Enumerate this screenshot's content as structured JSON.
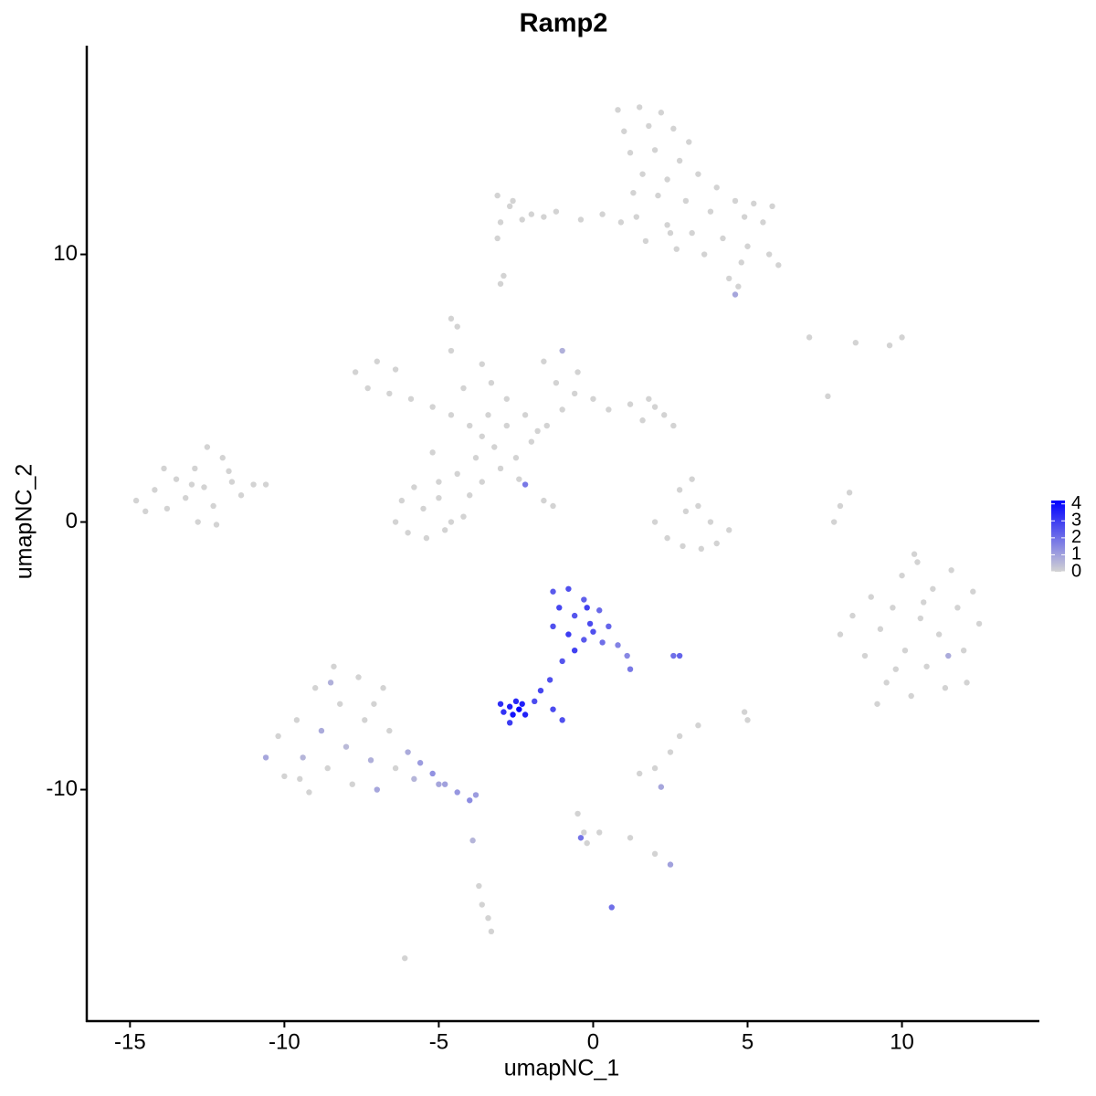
{
  "chart_data": {
    "type": "scatter",
    "title": "Ramp2",
    "x_label": "umapNC_1",
    "y_label": "umapNC_2",
    "xlim": [
      -16.4,
      14.45
    ],
    "ylim": [
      -18.65,
      17.8
    ],
    "xticks": [
      -15,
      -10,
      -5,
      0,
      5,
      10
    ],
    "yticks": [
      -10,
      0,
      10
    ],
    "color_low": "#d3d3d3",
    "color_high": "#0000ff",
    "colorbar_lim": [
      0,
      4.2
    ],
    "colorbar_ticks": [
      0,
      1,
      2,
      3,
      4
    ],
    "x": [
      0.8,
      1.5,
      2.2,
      1.0,
      1.8,
      2.6,
      3.1,
      1.2,
      2.0,
      2.8,
      3.4,
      1.6,
      2.4,
      4.0,
      4.6,
      5.2,
      5.8,
      5.5,
      4.9,
      3.8,
      3.0,
      2.1,
      1.3,
      1.4,
      2.4,
      3.2,
      4.2,
      5.0,
      5.7,
      6.0,
      4.8,
      4.4,
      4.7,
      3.6,
      2.7,
      1.7,
      0.9,
      0.3,
      -0.4,
      -1.2,
      -2.0,
      -2.7,
      -3.1,
      -2.6,
      -3.0,
      -2.3,
      -3.1,
      -1.6,
      4.6,
      2.5,
      -3.0,
      -2.9,
      -14.8,
      -14.2,
      -13.8,
      -13.5,
      -13.2,
      -12.9,
      -12.6,
      -12.3,
      -12.0,
      -11.7,
      -11.4,
      -11.0,
      -10.6,
      -12.5,
      -13.9,
      -14.5,
      -12.8,
      -12.2,
      -11.8,
      -13.0,
      -7.7,
      -7.0,
      -6.4,
      -7.3,
      -6.6,
      -5.9,
      -5.2,
      -4.6,
      -4.0,
      -3.6,
      -3.2,
      -3.8,
      -4.4,
      -5.0,
      -5.8,
      -6.2,
      -6.4,
      -6.0,
      -5.4,
      -4.8,
      -4.2,
      -4.0,
      -3.6,
      -5.5,
      -5.0,
      -4.6,
      -3.0,
      -2.5,
      -2.0,
      -1.5,
      -1.0,
      -0.6,
      -1.2,
      -1.6,
      -1.0,
      -0.5,
      0.0,
      0.5,
      1.2,
      1.8,
      2.3,
      2.6,
      1.6,
      -2.2,
      -2.8,
      -3.4,
      -4.2,
      -4.6,
      -4.4,
      -4.6,
      -3.6,
      -2.4,
      -1.6,
      -1.3,
      -2.2,
      -5.2,
      -2.8,
      2.0,
      -1.8,
      -3.3,
      2.0,
      2.4,
      2.9,
      3.5,
      4.0,
      4.4,
      2.8,
      3.0,
      3.4,
      3.8,
      3.2,
      7.8,
      8.0,
      8.3,
      7.6,
      7.0,
      9.6,
      10.0,
      8.5,
      8.0,
      8.4,
      8.8,
      9.0,
      9.3,
      9.5,
      9.7,
      10.0,
      10.1,
      10.3,
      10.5,
      10.6,
      10.8,
      11.0,
      11.2,
      11.4,
      11.6,
      11.8,
      12.0,
      12.3,
      12.5,
      9.2,
      10.7,
      11.5,
      12.1,
      9.8,
      10.4,
      -1.3,
      -0.8,
      -0.3,
      0.2,
      -1.1,
      -0.6,
      -0.1,
      0.5,
      -1.3,
      -0.8,
      -0.3,
      0.3,
      0.8,
      1.1,
      1.2,
      -0.6,
      -1.0,
      -1.4,
      -1.7,
      -1.9,
      2.8,
      2.6,
      -0.2,
      0.0,
      -3.0,
      -2.7,
      -2.4,
      -2.2,
      -2.6,
      -2.9,
      -2.5,
      -2.7,
      -2.3,
      -1.3,
      -1.0,
      -10.6,
      -10.2,
      -10.0,
      -9.6,
      -9.4,
      -9.2,
      -9.0,
      -8.8,
      -8.6,
      -8.4,
      -8.2,
      -8.0,
      -7.8,
      -7.6,
      -7.4,
      -7.2,
      -7.0,
      -6.8,
      -6.6,
      -6.4,
      -6.0,
      -5.6,
      -5.2,
      -4.8,
      -4.4,
      -4.0,
      -3.8,
      -5.0,
      -5.8,
      -9.5,
      -8.5,
      -7.1,
      1.5,
      2.0,
      2.5,
      2.8,
      2.2,
      3.4,
      5.0,
      4.9,
      -0.5,
      -0.3,
      -0.2,
      0.2,
      1.2,
      2.0,
      2.5,
      -0.4,
      0.6,
      -3.9,
      -3.7,
      -3.6,
      -3.4,
      -3.3,
      -6.1
    ],
    "y": [
      15.4,
      15.5,
      15.3,
      14.6,
      14.8,
      14.7,
      14.2,
      13.8,
      13.9,
      13.5,
      13.0,
      13.0,
      12.8,
      12.5,
      12.0,
      11.9,
      11.8,
      11.2,
      11.4,
      11.6,
      12.0,
      12.2,
      12.3,
      11.4,
      11.1,
      10.8,
      10.6,
      10.3,
      10.0,
      9.6,
      9.7,
      9.1,
      8.8,
      10.0,
      10.2,
      10.5,
      11.2,
      11.5,
      11.3,
      11.6,
      11.5,
      11.8,
      12.2,
      12.0,
      11.2,
      11.3,
      10.6,
      11.4,
      8.5,
      10.8,
      8.9,
      9.2,
      0.8,
      1.2,
      0.5,
      1.6,
      0.9,
      2.0,
      1.3,
      0.6,
      2.4,
      1.5,
      1.0,
      1.4,
      1.4,
      2.8,
      2.0,
      0.4,
      0.0,
      -0.1,
      1.9,
      1.4,
      5.6,
      6.0,
      5.7,
      5.0,
      4.8,
      4.6,
      4.3,
      4.0,
      3.6,
      3.2,
      2.8,
      2.4,
      1.8,
      1.5,
      1.3,
      0.8,
      0.0,
      -0.4,
      -0.6,
      -0.3,
      0.2,
      1.0,
      1.5,
      0.5,
      0.9,
      0.0,
      2.0,
      2.4,
      3.0,
      3.6,
      4.2,
      4.8,
      5.2,
      6.0,
      6.4,
      5.6,
      4.6,
      4.2,
      4.4,
      4.6,
      4.0,
      3.6,
      3.8,
      4.0,
      4.6,
      4.0,
      5.0,
      6.4,
      7.3,
      7.6,
      5.9,
      1.6,
      0.8,
      0.6,
      1.4,
      2.6,
      3.6,
      4.3,
      3.4,
      5.2,
      0.0,
      -0.6,
      -0.9,
      -1.0,
      -0.8,
      -0.3,
      1.2,
      0.4,
      0.6,
      0.0,
      1.6,
      0.0,
      0.6,
      1.1,
      4.7,
      6.9,
      6.6,
      6.9,
      6.7,
      -4.2,
      -3.5,
      -5.0,
      -2.8,
      -4.0,
      -6.0,
      -3.2,
      -2.0,
      -4.8,
      -6.5,
      -1.5,
      -3.6,
      -5.4,
      -2.5,
      -4.2,
      -6.2,
      -1.8,
      -3.2,
      -4.8,
      -2.6,
      -3.8,
      -6.8,
      -3.0,
      -5.0,
      -6.0,
      -5.5,
      -1.2,
      -2.6,
      -2.5,
      -2.9,
      -3.3,
      -3.2,
      -3.5,
      -3.8,
      -3.9,
      -3.9,
      -4.2,
      -4.4,
      -4.5,
      -4.6,
      -5.0,
      -5.5,
      -4.8,
      -5.2,
      -5.9,
      -6.3,
      -6.7,
      -5.0,
      -5.0,
      -3.2,
      -4.1,
      -6.8,
      -6.9,
      -7.0,
      -7.2,
      -7.2,
      -7.1,
      -6.7,
      -7.5,
      -6.8,
      -7.0,
      -7.4,
      -8.8,
      -8.0,
      -9.5,
      -7.4,
      -8.8,
      -10.1,
      -6.2,
      -7.8,
      -9.2,
      -5.4,
      -6.8,
      -8.4,
      -9.8,
      -5.8,
      -7.4,
      -8.9,
      -10.0,
      -6.2,
      -7.8,
      -9.2,
      -8.6,
      -9.0,
      -9.4,
      -9.8,
      -10.1,
      -10.4,
      -10.2,
      -9.8,
      -9.6,
      -9.6,
      -6.0,
      -6.8,
      -9.4,
      -9.2,
      -8.6,
      -8.0,
      -9.9,
      -7.6,
      -7.4,
      -7.1,
      -10.9,
      -11.6,
      -12.0,
      -11.6,
      -11.8,
      -12.4,
      -12.8,
      -11.8,
      -14.4,
      -11.9,
      -13.6,
      -14.3,
      -14.8,
      -15.3,
      -16.3
    ],
    "expression": [
      0,
      0,
      0,
      0,
      0,
      0,
      0,
      0,
      0,
      0,
      0,
      0,
      0,
      0,
      0,
      0,
      0,
      0,
      0,
      0,
      0,
      0,
      0,
      0,
      0,
      0,
      0,
      0,
      0,
      0,
      0,
      0,
      0,
      0,
      0,
      0,
      0,
      0,
      0,
      0,
      0,
      0,
      0,
      0,
      0,
      0,
      0,
      0,
      0.9,
      0,
      0,
      0,
      0,
      0,
      0,
      0,
      0,
      0,
      0,
      0,
      0,
      0,
      0,
      0,
      0,
      0,
      0,
      0,
      0,
      0,
      0,
      0,
      0,
      0,
      0,
      0,
      0,
      0,
      0,
      0,
      0,
      0,
      0,
      0,
      0,
      0,
      0,
      0,
      0,
      0,
      0,
      0,
      0,
      0,
      0,
      0,
      0,
      0,
      0,
      0,
      0,
      0,
      0,
      0,
      0,
      0,
      0.7,
      0,
      0,
      0,
      0,
      0,
      0,
      0,
      0,
      0,
      0,
      0,
      0,
      0,
      0,
      0,
      0,
      0,
      0,
      0,
      1.8,
      0,
      0,
      0,
      0,
      0,
      0,
      0,
      0,
      0,
      0,
      0,
      0,
      0,
      0,
      0,
      0,
      0,
      0,
      0,
      0,
      0,
      0,
      0,
      0,
      0,
      0,
      0,
      0,
      0,
      0,
      0,
      0,
      0,
      0,
      0,
      0,
      0,
      0,
      0,
      0,
      0,
      0,
      0,
      0,
      0,
      0,
      0,
      0.8,
      0,
      0,
      0,
      2.4,
      2.6,
      2.3,
      2.1,
      2.8,
      2.5,
      2.7,
      2.2,
      2.6,
      3.0,
      2.4,
      2.0,
      1.6,
      1.5,
      1.8,
      2.9,
      2.5,
      2.6,
      2.8,
      2.7,
      2.2,
      2.0,
      2.9,
      2.6,
      3.3,
      3.6,
      4.2,
      3.5,
      3.8,
      3.2,
      3.4,
      3.0,
      3.6,
      2.7,
      2.6,
      0.9,
      0,
      0,
      0,
      0.6,
      0,
      0,
      0.8,
      0,
      0,
      0,
      0.5,
      0,
      0,
      0,
      0.7,
      0.9,
      0,
      0,
      0,
      0.8,
      1.1,
      1.3,
      1.0,
      1.2,
      1.4,
      1.1,
      0.9,
      0.6,
      0,
      0.7,
      0,
      0,
      0,
      0,
      0,
      0.9,
      0,
      0,
      0,
      0,
      0,
      0,
      0,
      0,
      0,
      1.0,
      1.9,
      2.0,
      0.6,
      0,
      0,
      0,
      0,
      0
    ]
  }
}
